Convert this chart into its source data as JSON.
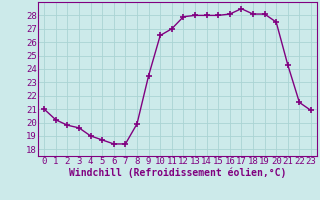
{
  "x": [
    0,
    1,
    2,
    3,
    4,
    5,
    6,
    7,
    8,
    9,
    10,
    11,
    12,
    13,
    14,
    15,
    16,
    17,
    18,
    19,
    20,
    21,
    22,
    23
  ],
  "y": [
    21.0,
    20.2,
    19.8,
    19.6,
    19.0,
    18.7,
    18.4,
    18.4,
    19.9,
    23.5,
    26.5,
    27.0,
    27.9,
    28.0,
    28.0,
    28.0,
    28.1,
    28.5,
    28.1,
    28.1,
    27.5,
    24.3,
    21.5,
    20.9
  ],
  "line_color": "#800080",
  "marker_color": "#800080",
  "bg_color": "#cceaea",
  "grid_color": "#aad4d4",
  "xlabel": "Windchill (Refroidissement éolien,°C)",
  "ylim": [
    17.5,
    29.0
  ],
  "xlim": [
    -0.5,
    23.5
  ],
  "yticks": [
    18,
    19,
    20,
    21,
    22,
    23,
    24,
    25,
    26,
    27,
    28
  ],
  "xticks": [
    0,
    1,
    2,
    3,
    4,
    5,
    6,
    7,
    8,
    9,
    10,
    11,
    12,
    13,
    14,
    15,
    16,
    17,
    18,
    19,
    20,
    21,
    22,
    23
  ],
  "xlabel_fontsize": 7.0,
  "tick_fontsize": 6.5,
  "line_width": 1.0,
  "marker_size": 4
}
